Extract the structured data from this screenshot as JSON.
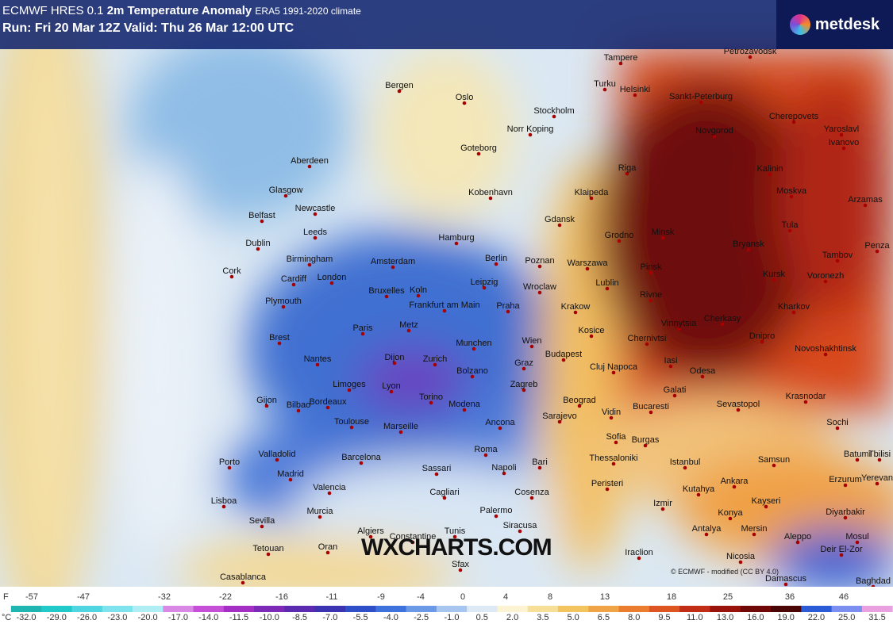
{
  "header": {
    "model": "ECMWF HRES 0.1",
    "parameter": "2m Temperature Anomaly",
    "climate": "ERA5 1991-2020 climate",
    "run": "Run: Fri 20 Mar 12Z Valid: Thu 26 Mar 12:00 UTC",
    "logo": "metdesk"
  },
  "watermark": "WXCHARTS.COM",
  "credit": "© ECMWF - modified (CC BY 4.0)",
  "map": {
    "cities": [
      "Tampere",
      "Petrozavodsk",
      "Turku",
      "Helsinki",
      "Sankt-Peterburg",
      "Bergen",
      "Oslo",
      "Stockholm",
      "Norr Koping",
      "Cherepovets",
      "Novgorod",
      "Goteborg",
      "Yaroslavl",
      "Ivanovo",
      "Aberdeen",
      "Riga",
      "Kalinin",
      "Glasgow",
      "Kobenhavn",
      "Klaipeda",
      "Moskva",
      "Arzamas",
      "Belfast",
      "Newcastle",
      "Gdansk",
      "Tula",
      "Dublin",
      "Leeds",
      "Hamburg",
      "Grodno",
      "Minsk",
      "Bryansk",
      "Penza",
      "Birmingham",
      "Amsterdam",
      "Berlin",
      "Poznan",
      "Warszawa",
      "Tambov",
      "Cork",
      "Cardiff",
      "London",
      "Pinsk",
      "Kursk",
      "Voronezh",
      "Plymouth",
      "Bruxelles",
      "Koln",
      "Leipzig",
      "Wroclaw",
      "Lublin",
      "Rivne",
      "Frankfurt am Main",
      "Praha",
      "Krakow",
      "Kharkov",
      "Paris",
      "Metz",
      "Kosice",
      "Vinnytsia",
      "Cherkasy",
      "Brest",
      "Munchen",
      "Wien",
      "Dnipro",
      "Novoshakhtinsk",
      "Nantes",
      "Dijon",
      "Zurich",
      "Budapest",
      "Chernivtsi",
      "Cluj Napoca",
      "Iasi",
      "Bolzano",
      "Graz",
      "Odesa",
      "Limoges",
      "Lyon",
      "Zagreb",
      "Galati",
      "Krasnodar",
      "Bordeaux",
      "Torino",
      "Beograd",
      "Sevastopol",
      "Modena",
      "Vidin",
      "Bucaresti",
      "Toulouse",
      "Ancona",
      "Sarajevo",
      "Sochi",
      "Gijon",
      "Bilbao",
      "Marseille",
      "Sofia",
      "Burgas",
      "Valladolid",
      "Barcelona",
      "Roma",
      "Bari",
      "Istanbul",
      "Samsun",
      "Batumi",
      "Tbilisi",
      "Porto",
      "Thessaloniki",
      "Madrid",
      "Sassari",
      "Napoli",
      "Erzurum",
      "Yerevan",
      "Ankara",
      "Kayseri",
      "Lisboa",
      "Valencia",
      "Cagliari",
      "Cosenza",
      "Peristeri",
      "Kutahya",
      "Izmir",
      "Diyarbakir",
      "Konya",
      "Murcia",
      "Sevilla",
      "Palermo",
      "Siracusa",
      "Antalya",
      "Mersin",
      "Mosul",
      "Algiers",
      "Constantine",
      "Tunis",
      "Aleppo",
      "Tetouan",
      "Oran",
      "Iraclion",
      "Nicosia",
      "Deir El-Zor",
      "Casablanca",
      "Sfax",
      "Damascus",
      "Baghdad"
    ]
  },
  "legend": {
    "f_unit": "F",
    "f_values": [
      "-57",
      "-47",
      "-32",
      "-22",
      "-16",
      "-11",
      "-9",
      "-4",
      "0",
      "4",
      "8",
      "13",
      "18",
      "25",
      "36",
      "46"
    ],
    "c_unit": "°C",
    "c_values": [
      "-32.0",
      "-29.0",
      "-26.0",
      "-23.0",
      "-20.0",
      "-17.0",
      "-14.0",
      "-11.5",
      "-10.0",
      "-8.5",
      "-7.0",
      "-5.5",
      "-4.0",
      "-2.5",
      "-1.0",
      "0.5",
      "2.0",
      "3.5",
      "5.0",
      "6.5",
      "8.0",
      "9.5",
      "11.0",
      "13.0",
      "16.0",
      "19.0",
      "22.0",
      "25.0",
      "31.5"
    ]
  }
}
